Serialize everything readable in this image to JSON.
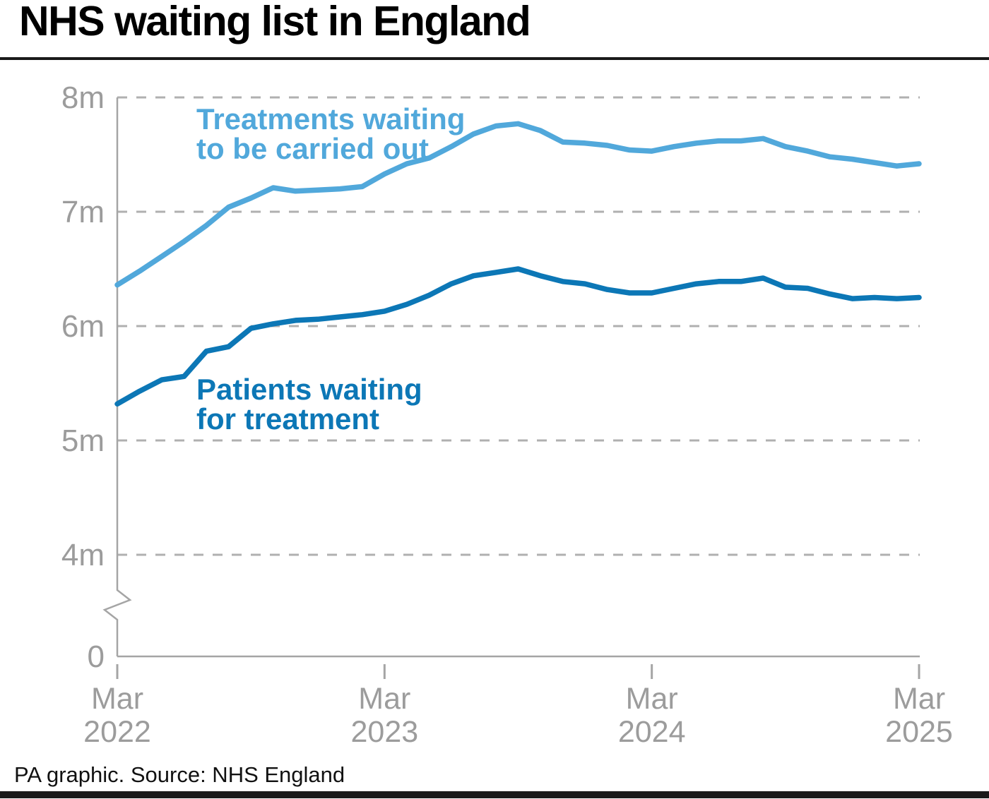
{
  "title": "NHS waiting list in England",
  "footer": "PA graphic. Source: NHS England",
  "colors": {
    "treatments_line": "#51a8db",
    "patients_line": "#0c77b6",
    "grid": "#b0b0b0",
    "axis": "#a5a5a5",
    "tick_text": "#9c9c9c",
    "title_text": "#000000"
  },
  "series_labels": {
    "treatments_line1": "Treatments waiting",
    "treatments_line2": "to be carried out",
    "patients_line1": "Patients waiting",
    "patients_line2": "for treatment"
  },
  "y_axis": {
    "ticks": [
      {
        "label": "8m",
        "value": 8
      },
      {
        "label": "7m",
        "value": 7
      },
      {
        "label": "6m",
        "value": 6
      },
      {
        "label": "5m",
        "value": 5
      },
      {
        "label": "4m",
        "value": 4
      },
      {
        "label": "0",
        "value": 0
      }
    ],
    "axis_break": true
  },
  "x_axis": {
    "ticks": [
      {
        "month": "Mar",
        "year": "2022",
        "month_index": 0
      },
      {
        "month": "Mar",
        "year": "2023",
        "month_index": 12
      },
      {
        "month": "Mar",
        "year": "2024",
        "month_index": 24
      },
      {
        "month": "Mar",
        "year": "2025",
        "month_index": 36
      }
    ]
  },
  "chart_data": {
    "type": "line",
    "title": "NHS waiting list in England",
    "unit": "millions",
    "grid": "horizontal-dashed",
    "legend_position": "inline-labels",
    "ylim_displayed": [
      4,
      8
    ],
    "y_break_to_zero": true,
    "x": [
      "Mar 2022",
      "Apr 2022",
      "May 2022",
      "Jun 2022",
      "Jul 2022",
      "Aug 2022",
      "Sep 2022",
      "Oct 2022",
      "Nov 2022",
      "Dec 2022",
      "Jan 2023",
      "Feb 2023",
      "Mar 2023",
      "Apr 2023",
      "May 2023",
      "Jun 2023",
      "Jul 2023",
      "Aug 2023",
      "Sep 2023",
      "Oct 2023",
      "Nov 2023",
      "Dec 2023",
      "Jan 2024",
      "Feb 2024",
      "Mar 2024",
      "Apr 2024",
      "May 2024",
      "Jun 2024",
      "Jul 2024",
      "Aug 2024",
      "Sep 2024",
      "Oct 2024",
      "Nov 2024",
      "Dec 2024",
      "Jan 2025",
      "Feb 2025",
      "Mar 2025"
    ],
    "series": [
      {
        "name": "Treatments waiting to be carried out",
        "color": "#51a8db",
        "values": [
          6.36,
          6.48,
          6.61,
          6.74,
          6.88,
          7.04,
          7.12,
          7.21,
          7.18,
          7.19,
          7.2,
          7.22,
          7.33,
          7.42,
          7.47,
          7.57,
          7.68,
          7.75,
          7.77,
          7.71,
          7.61,
          7.6,
          7.58,
          7.54,
          7.53,
          7.57,
          7.6,
          7.62,
          7.62,
          7.64,
          7.57,
          7.53,
          7.48,
          7.46,
          7.43,
          7.4,
          7.42
        ]
      },
      {
        "name": "Patients waiting for treatment",
        "color": "#0c77b6",
        "values": [
          5.32,
          5.43,
          5.53,
          5.56,
          5.78,
          5.82,
          5.98,
          6.02,
          6.05,
          6.06,
          6.08,
          6.1,
          6.13,
          6.19,
          6.27,
          6.37,
          6.44,
          6.47,
          6.5,
          6.44,
          6.39,
          6.37,
          6.32,
          6.29,
          6.29,
          6.33,
          6.37,
          6.39,
          6.39,
          6.42,
          6.34,
          6.33,
          6.28,
          6.24,
          6.25,
          6.24,
          6.25
        ]
      }
    ]
  }
}
